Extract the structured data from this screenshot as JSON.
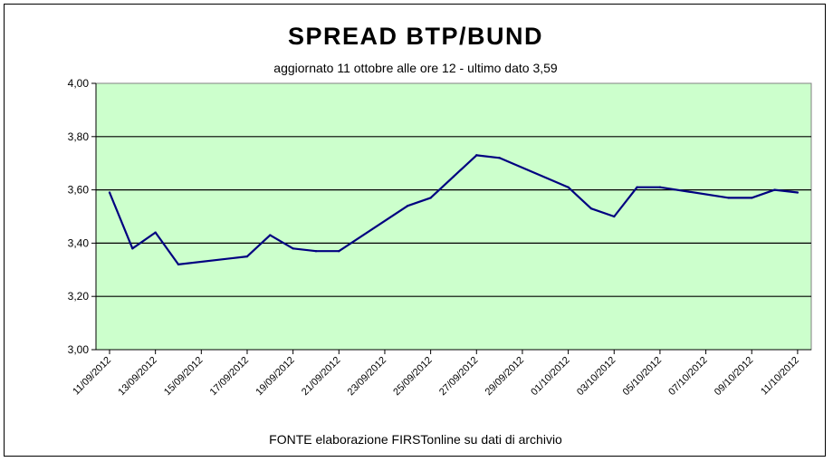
{
  "chart_data": {
    "type": "line",
    "title": "SPREAD  BTP/BUND",
    "subtitle": "aggiornato 11 ottobre alle ore 12 - ultimo dato 3,59",
    "source": "FONTE elaborazione FIRSTonline su dati di archivio",
    "ylim": [
      3.0,
      4.0
    ],
    "yticks": [
      "3,00",
      "3,20",
      "3,40",
      "3,60",
      "3,80",
      "4,00"
    ],
    "grid": true,
    "legend": "none",
    "plot_background": "#ccffcc",
    "line_color": "#000080",
    "x_tick_labels": [
      "11/09/2012",
      "13/09/2012",
      "15/09/2012",
      "17/09/2012",
      "19/09/2012",
      "21/09/2012",
      "23/09/2012",
      "25/09/2012",
      "27/09/2012",
      "29/09/2012",
      "01/10/2012",
      "03/10/2012",
      "05/10/2012",
      "07/10/2012",
      "09/10/2012",
      "11/10/2012"
    ],
    "x": [
      "11/09/2012",
      "12/09/2012",
      "13/09/2012",
      "14/09/2012",
      "17/09/2012",
      "18/09/2012",
      "19/09/2012",
      "20/09/2012",
      "21/09/2012",
      "24/09/2012",
      "25/09/2012",
      "26/09/2012",
      "27/09/2012",
      "28/09/2012",
      "01/10/2012",
      "02/10/2012",
      "03/10/2012",
      "04/10/2012",
      "05/10/2012",
      "08/10/2012",
      "09/10/2012",
      "10/10/2012",
      "11/10/2012"
    ],
    "values": [
      3.59,
      3.38,
      3.44,
      3.32,
      3.35,
      3.43,
      3.38,
      3.37,
      3.37,
      3.54,
      3.57,
      3.65,
      3.73,
      3.72,
      3.61,
      3.53,
      3.5,
      3.61,
      3.61,
      3.57,
      3.57,
      3.6,
      3.59
    ]
  }
}
